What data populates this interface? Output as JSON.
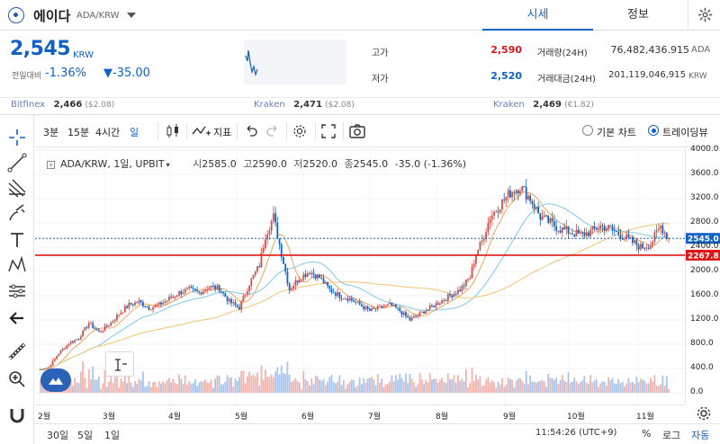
{
  "header": {
    "coin_name": "에이다",
    "coin_code": "ADA/KRW",
    "tabs": [
      "시세",
      "정보"
    ]
  },
  "price": {
    "current": "2,545",
    "unit": "KRW",
    "change_label": "전일대비",
    "change_pct": "-1.36%",
    "change_abs": "▼-35.00"
  },
  "stats": {
    "high_label": "고가",
    "high": "2,590",
    "low_label": "저가",
    "low": "2,520",
    "vol_label": "거래량(24H)",
    "vol": "76,482,436.915",
    "vol_unit": "ADA",
    "amt_label": "거래대금(24H)",
    "amt": "201,119,046,915",
    "amt_unit": "KRW"
  },
  "refs": [
    {
      "exchange": "Bitfinex",
      "value": "2,466",
      "sub": "($2.08)"
    },
    {
      "exchange": "Kraken",
      "value": "2,471",
      "sub": "($2.08)"
    },
    {
      "exchange": "Kraken",
      "value": "2,469",
      "sub": "(€1.82)"
    }
  ],
  "toolbar": {
    "timeframes": [
      "3분",
      "15분",
      "4시간",
      "일"
    ],
    "indicator_label": "지표",
    "basic_chart_label": "기본 차트",
    "tradingview_label": "트레이딩뷰"
  },
  "legend": {
    "symbol": "ADA/KRW, 1일, UPBIT",
    "open_label": "시",
    "open": "2585.0",
    "high_label": "고",
    "high": "2590.0",
    "low_label": "저",
    "low": "2520.0",
    "close_label": "종",
    "close": "2545.0",
    "change": "-35.0 (-1.36%)"
  },
  "chart_data": {
    "type": "candlestick",
    "symbol": "ADA/KRW",
    "interval": "1일",
    "x_tick_labels": [
      "2월",
      "3월",
      "4월",
      "5월",
      "6월",
      "7월",
      "8월",
      "9월",
      "10월",
      "11월"
    ],
    "y_tick_labels": [
      "4000.0",
      "3600.0",
      "3200.0",
      "2800.0",
      "2400.0",
      "2000.0",
      "1600.0",
      "1200.0",
      "800.0",
      "400.0",
      "0.0"
    ],
    "ylim": [
      0,
      4000
    ],
    "close_path": [
      [
        0,
        380
      ],
      [
        5,
        420
      ],
      [
        10,
        650
      ],
      [
        15,
        820
      ],
      [
        20,
        900
      ],
      [
        25,
        1150
      ],
      [
        30,
        1000
      ],
      [
        35,
        1120
      ],
      [
        40,
        1300
      ],
      [
        45,
        1450
      ],
      [
        50,
        1500
      ],
      [
        55,
        1400
      ],
      [
        60,
        1450
      ],
      [
        65,
        1550
      ],
      [
        70,
        1650
      ],
      [
        75,
        1700
      ],
      [
        80,
        1650
      ],
      [
        85,
        1750
      ],
      [
        90,
        1720
      ],
      [
        95,
        1500
      ],
      [
        100,
        1400
      ],
      [
        105,
        1800
      ],
      [
        110,
        2100
      ],
      [
        113,
        2600
      ],
      [
        117,
        2900
      ],
      [
        121,
        2300
      ],
      [
        125,
        1700
      ],
      [
        130,
        1900
      ],
      [
        135,
        2000
      ],
      [
        140,
        1900
      ],
      [
        145,
        1700
      ],
      [
        150,
        1600
      ],
      [
        155,
        1550
      ],
      [
        160,
        1450
      ],
      [
        165,
        1350
      ],
      [
        170,
        1400
      ],
      [
        175,
        1450
      ],
      [
        180,
        1350
      ],
      [
        185,
        1200
      ],
      [
        190,
        1300
      ],
      [
        195,
        1400
      ],
      [
        200,
        1500
      ],
      [
        205,
        1600
      ],
      [
        210,
        1700
      ],
      [
        215,
        1900
      ],
      [
        218,
        2300
      ],
      [
        221,
        2500
      ],
      [
        225,
        2900
      ],
      [
        230,
        3100
      ],
      [
        235,
        3300
      ],
      [
        240,
        3400
      ],
      [
        245,
        3200
      ],
      [
        250,
        2900
      ],
      [
        255,
        2800
      ],
      [
        260,
        2700
      ],
      [
        265,
        2650
      ],
      [
        270,
        2600
      ],
      [
        275,
        2650
      ],
      [
        280,
        2750
      ],
      [
        285,
        2700
      ],
      [
        290,
        2600
      ],
      [
        295,
        2500
      ],
      [
        300,
        2400
      ],
      [
        305,
        2450
      ],
      [
        310,
        2750
      ],
      [
        314,
        2545
      ]
    ],
    "lines": [
      {
        "value": 2545.0,
        "label": "2545.0",
        "color": "#1261c4"
      },
      {
        "value": 2267.8,
        "label": "2267.8",
        "color": "#e01616"
      }
    ],
    "grid": true
  },
  "bottombar": {
    "ranges": [
      "30일",
      "5일",
      "1일"
    ],
    "clock": "11:54:26 (UTC+9)",
    "percent": "%",
    "log": "로그",
    "auto": "자동"
  }
}
